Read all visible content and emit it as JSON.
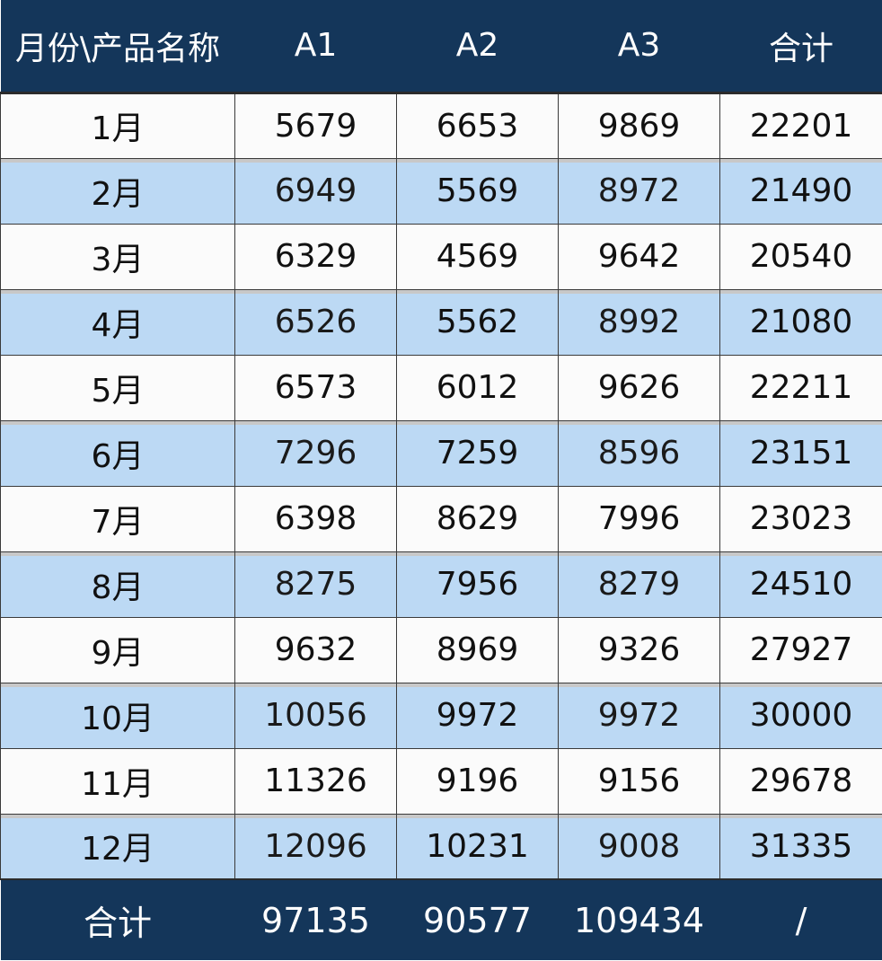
{
  "table": {
    "headers": [
      "月份\\产品名称",
      "A1",
      "A2",
      "A3",
      "合计"
    ],
    "rows": [
      [
        "1月",
        "5679",
        "6653",
        "9869",
        "22201"
      ],
      [
        "2月",
        "6949",
        "5569",
        "8972",
        "21490"
      ],
      [
        "3月",
        "6329",
        "4569",
        "9642",
        "20540"
      ],
      [
        "4月",
        "6526",
        "5562",
        "8992",
        "21080"
      ],
      [
        "5月",
        "6573",
        "6012",
        "9626",
        "22211"
      ],
      [
        "6月",
        "7296",
        "7259",
        "8596",
        "23151"
      ],
      [
        "7月",
        "6398",
        "8629",
        "7996",
        "23023"
      ],
      [
        "8月",
        "8275",
        "7956",
        "8279",
        "24510"
      ],
      [
        "9月",
        "9632",
        "8969",
        "9326",
        "27927"
      ],
      [
        "10月",
        "10056",
        "9972",
        "9972",
        "30000"
      ],
      [
        "11月",
        "11326",
        "9196",
        "9156",
        "29678"
      ],
      [
        "12月",
        "12096",
        "10231",
        "9008",
        "31335"
      ]
    ],
    "footer": [
      "合计",
      "97135",
      "90577",
      "109434",
      "/"
    ]
  },
  "colors": {
    "header_bg": "#14365a",
    "footer_bg": "#14365a",
    "alt_row_bg": "#bcd9f4",
    "row_bg": "#fbfbfb"
  }
}
